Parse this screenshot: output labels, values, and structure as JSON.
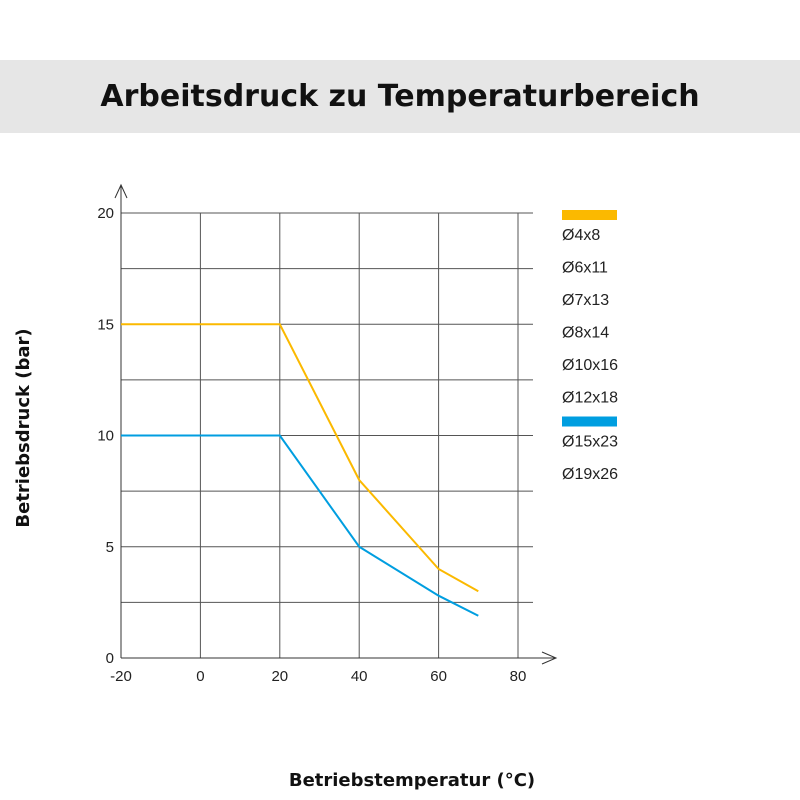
{
  "title": "Arbeitsdruck zu Temperaturbereich",
  "chart_data": {
    "type": "line",
    "xlabel": "Betriebstemperatur (°C)",
    "ylabel": "Betriebsdruck (bar)",
    "xlim": [
      -20,
      80
    ],
    "ylim": [
      0,
      20
    ],
    "x_ticks": [
      -20,
      0,
      20,
      40,
      60,
      80
    ],
    "y_ticks": [
      0,
      5,
      10,
      15,
      20
    ],
    "grid": true,
    "legend_position": "right",
    "series": [
      {
        "color": "#fbb900",
        "labels": [
          "Ø4x8",
          "Ø6x11",
          "Ø7x13",
          "Ø8x14",
          "Ø10x16",
          "Ø12x18"
        ],
        "x": [
          -20,
          20,
          40,
          60,
          70
        ],
        "y": [
          15,
          15,
          8,
          4,
          3
        ]
      },
      {
        "color": "#009ee0",
        "labels": [
          "Ø15x23",
          "Ø19x26"
        ],
        "x": [
          -20,
          20,
          40,
          60,
          70
        ],
        "y": [
          10,
          10,
          5,
          2.8,
          1.9
        ]
      }
    ]
  }
}
